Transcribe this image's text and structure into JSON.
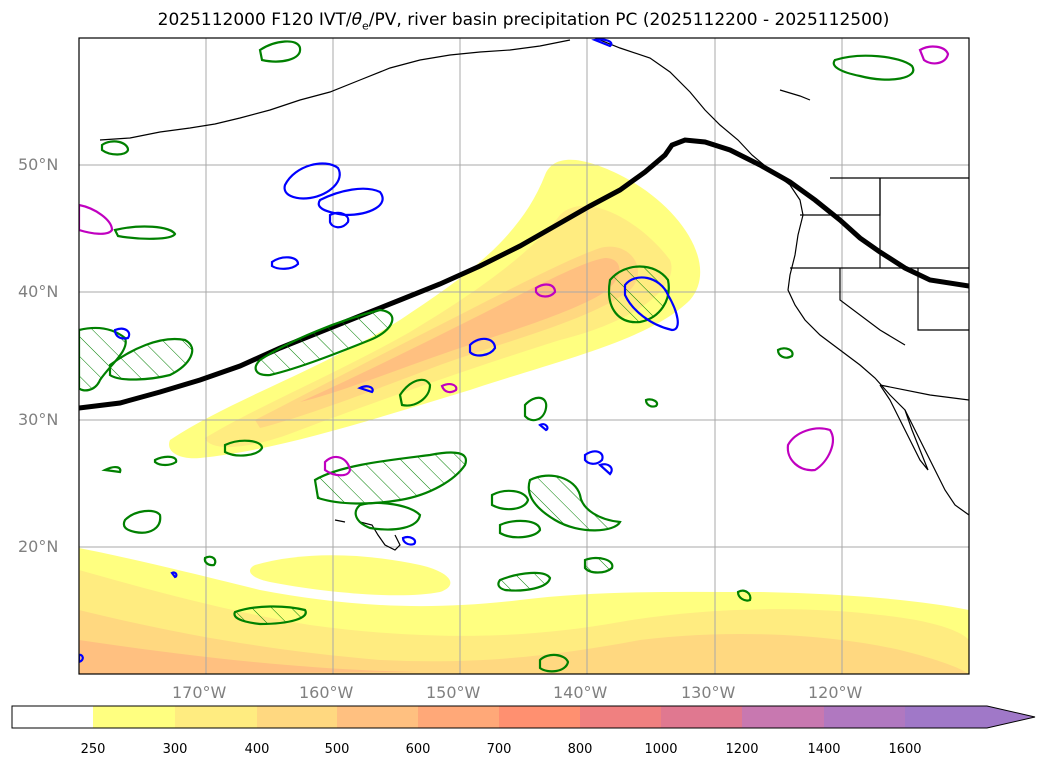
{
  "title": {
    "prefix": "2025112000 F120 IVT/",
    "theta": "θ",
    "theta_sub": "e",
    "suffix": "/PV, river basin precipitation PC (2025112200 - 2025112500)"
  },
  "map": {
    "projection": "cylindrical",
    "lon_range": [
      -180,
      -110
    ],
    "lat_range": [
      10,
      60
    ],
    "lat_ticks": [
      {
        "lat": 50,
        "label": "50°N"
      },
      {
        "lat": 40,
        "label": "40°N"
      },
      {
        "lat": 30,
        "label": "30°N"
      },
      {
        "lat": 20,
        "label": "20°N"
      }
    ],
    "lon_ticks": [
      {
        "lon": -170,
        "label": "170°W"
      },
      {
        "lon": -160,
        "label": "160°W"
      },
      {
        "lon": -150,
        "label": "150°W"
      },
      {
        "lon": -140,
        "label": "140°W"
      },
      {
        "lon": -130,
        "label": "130°W"
      },
      {
        "lon": -120,
        "label": "120°W"
      }
    ],
    "grid": true,
    "colors": {
      "ivt_250": "#ffff80",
      "ivt_300": "#ffec80",
      "ivt_400": "#ffd880",
      "ivt_500": "#ffc080",
      "theta_e_contour": "#000000",
      "pv_contour": "#0000ff",
      "precip_contour": "#008000",
      "magenta_contour": "#c000c0"
    }
  },
  "colorbar": {
    "levels": [
      "250",
      "300",
      "400",
      "500",
      "600",
      "700",
      "800",
      "1000",
      "1200",
      "1400",
      "1600"
    ],
    "colors": [
      "#ffffff",
      "#ffff80",
      "#ffec80",
      "#ffd880",
      "#ffc080",
      "#ffa878",
      "#ff9070",
      "#f08080",
      "#e07890",
      "#c878b0",
      "#b078c0",
      "#a078c8"
    ],
    "extend": "max"
  }
}
